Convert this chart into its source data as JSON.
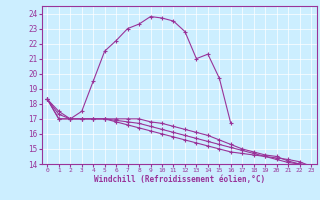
{
  "xlabel": "Windchill (Refroidissement éolien,°C)",
  "bg_color": "#cceeff",
  "line_color": "#993399",
  "grid_color": "#ffffff",
  "xlim": [
    -0.5,
    23.5
  ],
  "ylim": [
    14,
    24.5
  ],
  "yticks": [
    14,
    15,
    16,
    17,
    18,
    19,
    20,
    21,
    22,
    23,
    24
  ],
  "xticks": [
    0,
    1,
    2,
    3,
    4,
    5,
    6,
    7,
    8,
    9,
    10,
    11,
    12,
    13,
    14,
    15,
    16,
    17,
    18,
    19,
    20,
    21,
    22,
    23
  ],
  "curve1_x": [
    0,
    1,
    2,
    3,
    4,
    5,
    6,
    7,
    8,
    9,
    10,
    11,
    12,
    13,
    14,
    15,
    16
  ],
  "curve1_y": [
    18.3,
    17.5,
    17.0,
    17.5,
    19.5,
    21.5,
    22.2,
    23.0,
    23.3,
    23.8,
    23.7,
    23.5,
    22.8,
    21.0,
    21.3,
    19.7,
    16.7
  ],
  "curve2_x": [
    0,
    1,
    2,
    3,
    4,
    5,
    6,
    7,
    8,
    9,
    10,
    11,
    12,
    13,
    14,
    15,
    16,
    17,
    18,
    19,
    20,
    21,
    22,
    23
  ],
  "curve2_y": [
    18.3,
    17.0,
    17.0,
    17.0,
    17.0,
    17.0,
    17.0,
    17.0,
    17.0,
    16.8,
    16.7,
    16.5,
    16.3,
    16.1,
    15.9,
    15.6,
    15.3,
    15.0,
    14.8,
    14.6,
    14.5,
    14.2,
    14.0,
    13.9
  ],
  "curve3_x": [
    0,
    1,
    2,
    3,
    4,
    5,
    6,
    7,
    8,
    9,
    10,
    11,
    12,
    13,
    14,
    15,
    16,
    17,
    18,
    19,
    20,
    21,
    22,
    23
  ],
  "curve3_y": [
    18.3,
    17.0,
    17.0,
    17.0,
    17.0,
    17.0,
    16.9,
    16.8,
    16.7,
    16.5,
    16.3,
    16.1,
    15.9,
    15.7,
    15.5,
    15.3,
    15.1,
    14.9,
    14.7,
    14.5,
    14.3,
    14.1,
    14.0,
    13.9
  ],
  "curve4_x": [
    0,
    1,
    2,
    3,
    4,
    5,
    6,
    7,
    8,
    9,
    10,
    11,
    12,
    13,
    14,
    15,
    16,
    17,
    18,
    19,
    20,
    21,
    22,
    23
  ],
  "curve4_y": [
    18.3,
    17.3,
    17.0,
    17.0,
    17.0,
    17.0,
    16.8,
    16.6,
    16.4,
    16.2,
    16.0,
    15.8,
    15.6,
    15.4,
    15.2,
    15.0,
    14.8,
    14.7,
    14.6,
    14.5,
    14.4,
    14.3,
    14.15,
    13.85
  ]
}
